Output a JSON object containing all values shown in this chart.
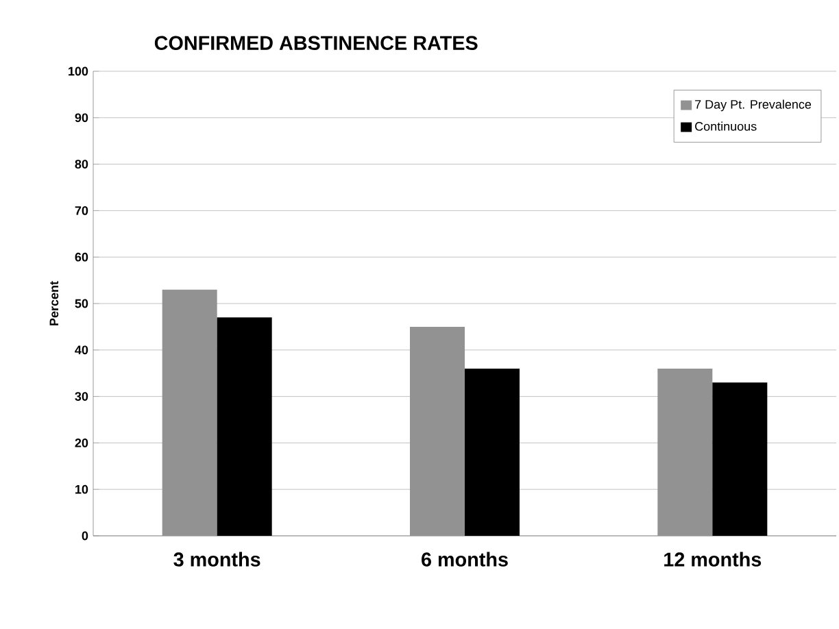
{
  "chart_data": {
    "type": "bar",
    "title": "CONFIRMED ABSTINENCE RATES",
    "ylabel": "Percent",
    "categories": [
      "3 months",
      "6 months",
      "12 months"
    ],
    "series": [
      {
        "name": "7 Day Pt. Prevalence",
        "color": "#929292",
        "values": [
          53,
          45,
          36
        ]
      },
      {
        "name": "Continuous",
        "color": "#000000",
        "values": [
          47,
          36,
          33
        ]
      }
    ],
    "ylim": [
      0,
      100
    ],
    "yticks": [
      0,
      10,
      20,
      30,
      40,
      50,
      60,
      70,
      80,
      90,
      100
    ],
    "grid": "y",
    "legend": "top right"
  }
}
